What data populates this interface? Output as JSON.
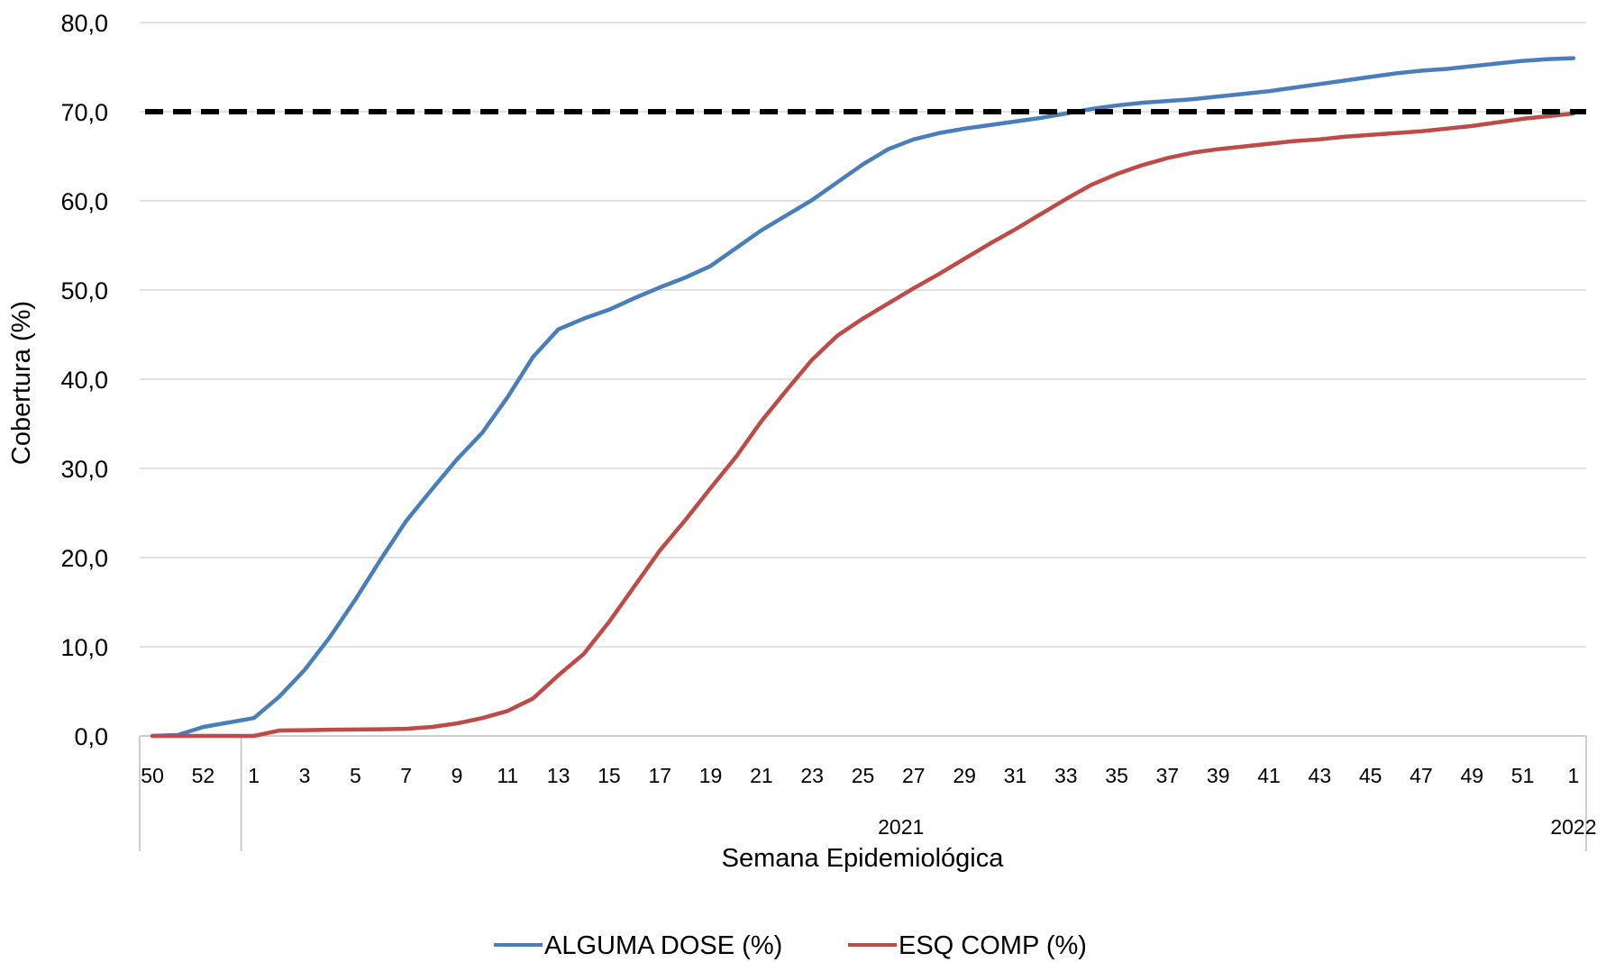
{
  "chart_data": {
    "type": "line",
    "ylabel": "Cobertura (%)",
    "xlabel": "Semana Epidemiológica",
    "ylim": [
      0,
      80
    ],
    "yticks": [
      "0,0",
      "10,0",
      "20,0",
      "30,0",
      "40,0",
      "50,0",
      "60,0",
      "70,0",
      "80,0"
    ],
    "grid": true,
    "legend_position": "bottom",
    "weeks": [
      "50",
      "51",
      "52",
      "53",
      "1",
      "2",
      "3",
      "4",
      "5",
      "6",
      "7",
      "8",
      "9",
      "10",
      "11",
      "12",
      "13",
      "14",
      "15",
      "16",
      "17",
      "18",
      "19",
      "20",
      "21",
      "22",
      "23",
      "24",
      "25",
      "26",
      "27",
      "28",
      "29",
      "30",
      "31",
      "32",
      "33",
      "34",
      "35",
      "36",
      "37",
      "38",
      "39",
      "40",
      "41",
      "42",
      "43",
      "44",
      "45",
      "46",
      "47",
      "48",
      "49",
      "50",
      "51",
      "52",
      "1"
    ],
    "x_tick_labels": [
      "50",
      "",
      "52",
      "",
      "1",
      "",
      "3",
      "",
      "5",
      "",
      "7",
      "",
      "9",
      "",
      "11",
      "",
      "13",
      "",
      "15",
      "",
      "17",
      "",
      "19",
      "",
      "21",
      "",
      "23",
      "",
      "25",
      "",
      "27",
      "",
      "29",
      "",
      "31",
      "",
      "33",
      "",
      "35",
      "",
      "37",
      "",
      "39",
      "",
      "41",
      "",
      "43",
      "",
      "45",
      "",
      "47",
      "",
      "49",
      "",
      "51",
      "",
      "1"
    ],
    "year_groups": [
      {
        "label": "",
        "start": 0,
        "end": 3
      },
      {
        "label": "2021",
        "start": 4,
        "end": 55
      },
      {
        "label": "2022",
        "start": 56,
        "end": 56
      }
    ],
    "reference_line": {
      "value": 70,
      "color": "#000000",
      "style": "dashed"
    },
    "series": [
      {
        "name": "ALGUMA DOSE (%)",
        "color": "#4A7EBB",
        "values": [
          0,
          0.1,
          1.0,
          1.5,
          2.0,
          4.4,
          7.4,
          11.1,
          15.3,
          19.8,
          24.1,
          27.6,
          31.0,
          34.0,
          38.0,
          42.5,
          45.6,
          46.8,
          47.8,
          49.1,
          50.3,
          51.4,
          52.7,
          54.7,
          56.7,
          58.4,
          60.1,
          62.1,
          64.1,
          65.8,
          66.9,
          67.6,
          68.1,
          68.5,
          68.9,
          69.3,
          69.8,
          70.3,
          70.7,
          71.0,
          71.2,
          71.4,
          71.7,
          72.0,
          72.3,
          72.7,
          73.1,
          73.5,
          73.9,
          74.3,
          74.6,
          74.8,
          75.1,
          75.4,
          75.7,
          75.9,
          76.0
        ]
      },
      {
        "name": "ESQ COMP (%)",
        "color": "#BE4B48",
        "values": [
          0,
          0,
          0,
          0,
          0,
          0.6,
          0.65,
          0.7,
          0.72,
          0.75,
          0.8,
          1.0,
          1.4,
          2.0,
          2.8,
          4.2,
          6.8,
          9.2,
          12.8,
          16.8,
          20.8,
          24.2,
          27.8,
          31.3,
          35.3,
          38.8,
          42.2,
          44.9,
          46.8,
          48.5,
          50.2,
          51.8,
          53.5,
          55.2,
          56.8,
          58.5,
          60.2,
          61.8,
          63.0,
          64.0,
          64.8,
          65.4,
          65.8,
          66.1,
          66.4,
          66.7,
          66.9,
          67.2,
          67.4,
          67.6,
          67.8,
          68.1,
          68.4,
          68.8,
          69.2,
          69.5,
          69.8
        ]
      }
    ]
  }
}
